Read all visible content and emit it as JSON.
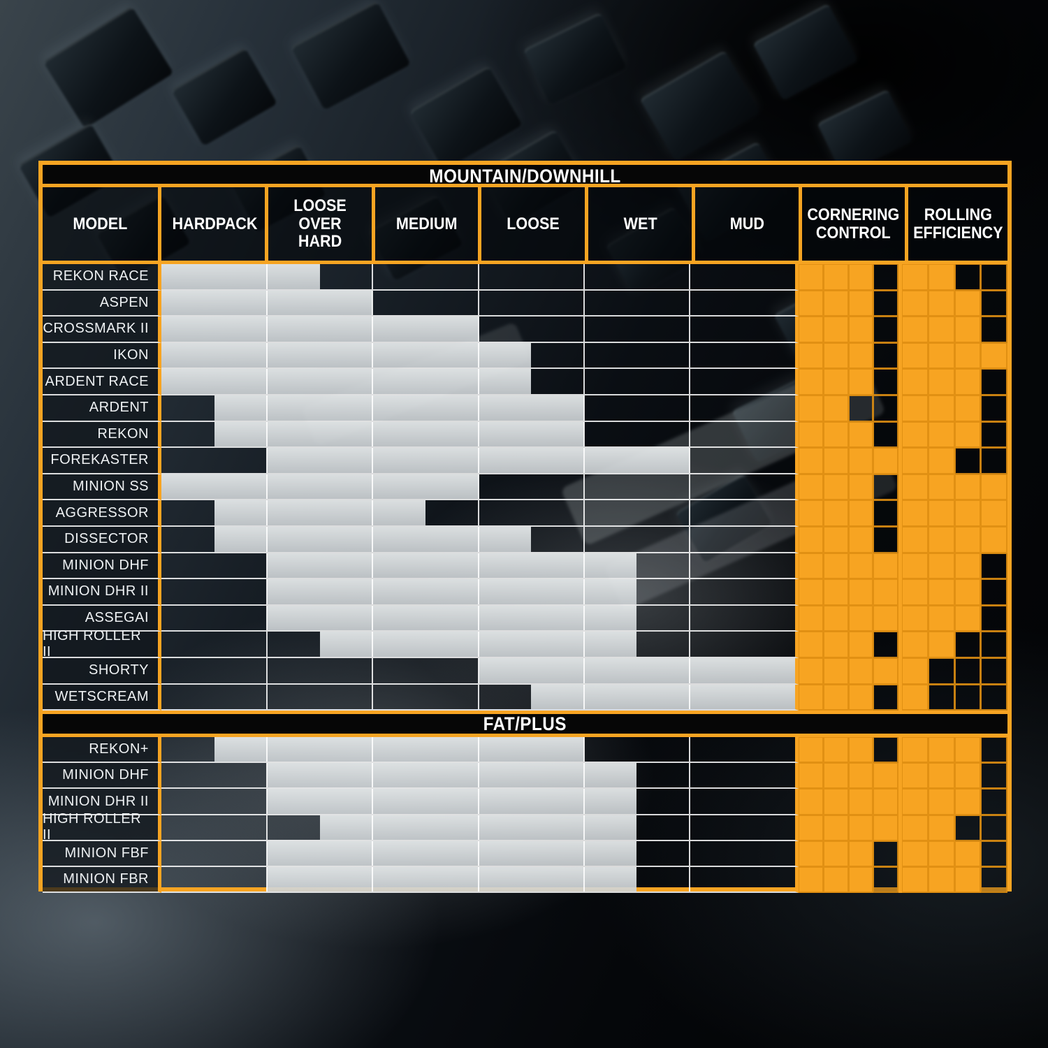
{
  "table": {
    "section1_title": "MOUNTAIN/DOWNHILL",
    "section2_title": "FAT/PLUS",
    "model_column_label": "MODEL",
    "terrain_columns": [
      "HARDPACK",
      "LOOSE OVER HARD",
      "MEDIUM",
      "LOOSE",
      "WET",
      "MUD"
    ],
    "rating_columns": [
      "CORNERING CONTROL",
      "ROLLING EFFICIENCY"
    ],
    "rating_scale_max": 4,
    "terrain_half_steps_total": 12,
    "colors": {
      "accent_orange": "#F7A422",
      "bar_gray": "#D8DCDD",
      "header_black": "#060606",
      "gridline_white": "#FFFFFF"
    },
    "chart_data": {
      "type": "table",
      "title": "MOUNTAIN/DOWNHILL",
      "subtitle": "FAT/PLUS",
      "note": "range values are in half-column steps across HARDPACK..MUD (0-12); ratings out of 4",
      "mountain_rows": [
        {
          "model": "REKON RACE",
          "range": [
            0,
            3
          ],
          "cornering": 3,
          "rolling": 2
        },
        {
          "model": "ASPEN",
          "range": [
            0,
            4
          ],
          "cornering": 3,
          "rolling": 3
        },
        {
          "model": "CROSSMARK II",
          "range": [
            0,
            6
          ],
          "cornering": 3,
          "rolling": 3
        },
        {
          "model": "IKON",
          "range": [
            0,
            7
          ],
          "cornering": 3,
          "rolling": 4
        },
        {
          "model": "ARDENT RACE",
          "range": [
            0,
            7
          ],
          "cornering": 3,
          "rolling": 3
        },
        {
          "model": "ARDENT",
          "range": [
            1,
            8
          ],
          "cornering": 2,
          "rolling": 3
        },
        {
          "model": "REKON",
          "range": [
            1,
            8
          ],
          "cornering": 3,
          "rolling": 3
        },
        {
          "model": "FOREKASTER",
          "range": [
            2,
            10
          ],
          "cornering": 4,
          "rolling": 2
        },
        {
          "model": "MINION SS",
          "range": [
            0,
            6
          ],
          "cornering": 3,
          "rolling": 4
        },
        {
          "model": "AGGRESSOR",
          "range": [
            1,
            5
          ],
          "cornering": 3,
          "rolling": 4
        },
        {
          "model": "DISSECTOR",
          "range": [
            1,
            7
          ],
          "cornering": 3,
          "rolling": 4
        },
        {
          "model": "MINION DHF",
          "range": [
            2,
            9
          ],
          "cornering": 4,
          "rolling": 3
        },
        {
          "model": "MINION DHR II",
          "range": [
            2,
            9
          ],
          "cornering": 4,
          "rolling": 3
        },
        {
          "model": "ASSEGAI",
          "range": [
            2,
            9
          ],
          "cornering": 4,
          "rolling": 3
        },
        {
          "model": "HIGH ROLLER II",
          "range": [
            3,
            9
          ],
          "cornering": 3,
          "rolling": 2
        },
        {
          "model": "SHORTY",
          "range": [
            6,
            12
          ],
          "cornering": 4,
          "rolling": 1
        },
        {
          "model": "WETSCREAM",
          "range": [
            7,
            12
          ],
          "cornering": 3,
          "rolling": 1
        }
      ],
      "fat_rows": [
        {
          "model": "REKON+",
          "range": [
            1,
            8
          ],
          "cornering": 3,
          "rolling": 3
        },
        {
          "model": "MINION DHF",
          "range": [
            2,
            9
          ],
          "cornering": 4,
          "rolling": 3
        },
        {
          "model": "MINION DHR II",
          "range": [
            2,
            9
          ],
          "cornering": 4,
          "rolling": 3
        },
        {
          "model": "HIGH ROLLER II",
          "range": [
            3,
            9
          ],
          "cornering": 4,
          "rolling": 2
        },
        {
          "model": "MINION FBF",
          "range": [
            2,
            9
          ],
          "cornering": 3,
          "rolling": 3
        },
        {
          "model": "MINION FBR",
          "range": [
            2,
            9
          ],
          "cornering": 3,
          "rolling": 3
        }
      ]
    }
  }
}
